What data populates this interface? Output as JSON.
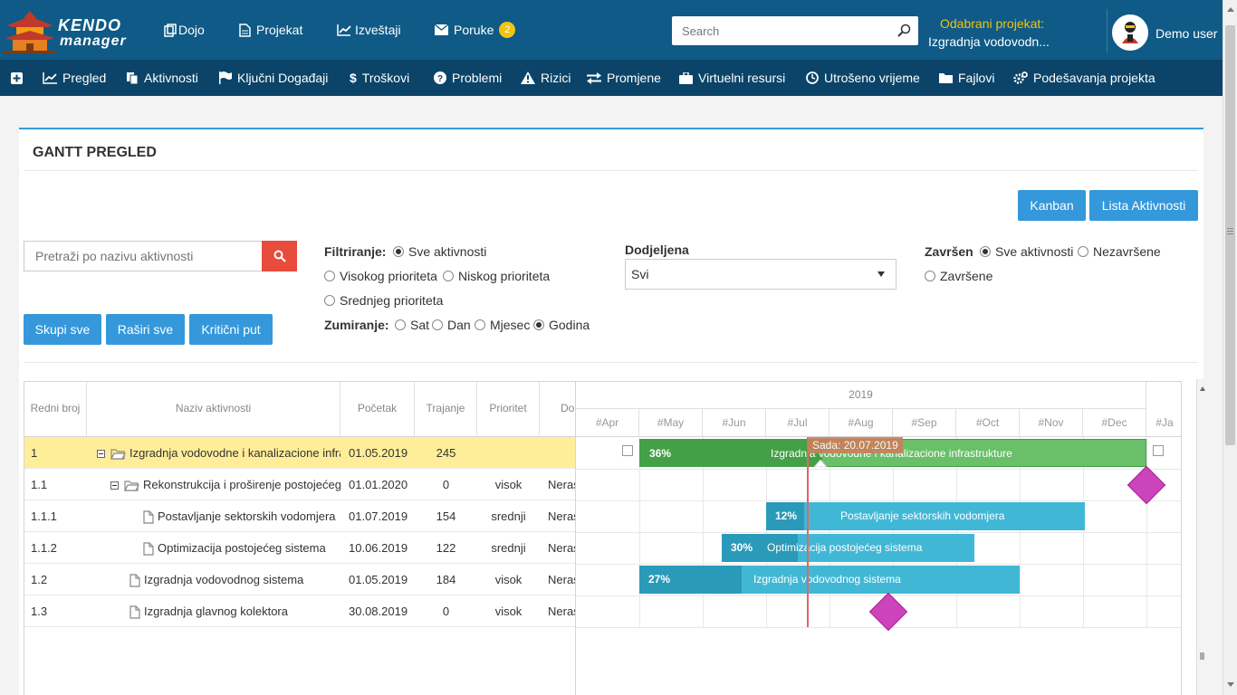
{
  "header": {
    "logo_line1": "KENDO",
    "logo_line2": "manager",
    "nav": [
      {
        "label": "Dojo",
        "icon": "copy-icon"
      },
      {
        "label": "Projekat",
        "icon": "document-icon"
      },
      {
        "label": "Izveštaji",
        "icon": "line-chart-icon"
      },
      {
        "label": "Poruke",
        "icon": "envelope-icon",
        "badge": "2"
      }
    ],
    "search_placeholder": "Search",
    "project_label": "Odabrani projekat:",
    "project_name": "Izgradnja vodovodn...",
    "user_name": "Demo user"
  },
  "subnav": [
    {
      "label": "",
      "icon": "plus-icon"
    },
    {
      "label": "Pregled",
      "icon": "area-chart-icon"
    },
    {
      "label": "Aktivnosti",
      "icon": "files-icon"
    },
    {
      "label": "Ključni Događaji",
      "icon": "flag-icon"
    },
    {
      "label": "Troškovi",
      "icon": "dollar-icon"
    },
    {
      "label": "Problemi",
      "icon": "question-circle-icon"
    },
    {
      "label": "Rizici",
      "icon": "warning-icon"
    },
    {
      "label": "Promjene",
      "icon": "exchange-icon"
    },
    {
      "label": "Virtuelni resursi",
      "icon": "briefcase-icon"
    },
    {
      "label": "Utrošeno vrijeme",
      "icon": "clock-icon"
    },
    {
      "label": "Fajlovi",
      "icon": "folder-icon"
    },
    {
      "label": "Podešavanja projekta",
      "icon": "cogs-icon"
    }
  ],
  "panel": {
    "title": "GANTT PREGLED",
    "kanban_label": "Kanban",
    "lista_label": "Lista Aktivnosti",
    "search_placeholder": "Pretraži po nazivu aktivnosti",
    "btn_collapse": "Skupi sve",
    "btn_expand": "Raširi sve",
    "btn_critical": "Kritični put",
    "filter_label": "Filtriranje:",
    "filter_options": [
      "Sve aktivnosti",
      "Visokog prioriteta",
      "Niskog prioriteta",
      "Srednjeg prioriteta"
    ],
    "zoom_label": "Zumiranje:",
    "zoom_options": [
      "Sat",
      "Dan",
      "Mjesec",
      "Godina"
    ],
    "assigned_label": "Dodjeljena",
    "assigned_value": "Svi",
    "done_label": "Završen",
    "done_options": [
      "Sve aktivnosti",
      "Nezavršene",
      "Završene"
    ]
  },
  "grid": {
    "columns": [
      "Redni broj",
      "Naziv aktivnosti",
      "Početak",
      "Trajanje",
      "Prioritet",
      "Do"
    ],
    "rows": [
      {
        "num": "1",
        "name": "Izgradnja vodovodne i kanalizacione infrastrukture",
        "start": "01.05.2019",
        "duration": "245",
        "priority": "",
        "assigned": ""
      },
      {
        "num": "1.1",
        "name": "Rekonstrukcija i proširenje postojećeg",
        "start": "01.01.2020",
        "duration": "0",
        "priority": "visok",
        "assigned": "Neras"
      },
      {
        "num": "1.1.1",
        "name": "Postavljanje sektorskih vodomjera",
        "start": "01.07.2019",
        "duration": "154",
        "priority": "srednji",
        "assigned": "Neras"
      },
      {
        "num": "1.1.2",
        "name": "Optimizacija postojećeg sistema",
        "start": "10.06.2019",
        "duration": "122",
        "priority": "srednji",
        "assigned": "Neras"
      },
      {
        "num": "1.2",
        "name": "Izgradnja vodovodnog sistema",
        "start": "01.05.2019",
        "duration": "184",
        "priority": "visok",
        "assigned": "Neras"
      },
      {
        "num": "1.3",
        "name": "Izgradnja glavnog kolektora",
        "start": "30.08.2019",
        "duration": "0",
        "priority": "visok",
        "assigned": "Neras"
      }
    ]
  },
  "timeline": {
    "year": "2019",
    "months": [
      "#Apr",
      "#May",
      "#Jun",
      "#Jul",
      "#Aug",
      "#Sep",
      "#Oct",
      "#Nov",
      "#Dec",
      "#Ja"
    ],
    "today_label": "Sada: 20.07.2019",
    "bars": [
      {
        "pct": "36%",
        "title": "Izgradnja vodovodne i kanalizacione infrastrukture",
        "progress": 0.36
      },
      {
        "pct": "12%",
        "title": "Postavljanje sektorskih vodomjera",
        "progress": 0.12
      },
      {
        "pct": "30%",
        "title": "Optimizacija postojećeg sistema",
        "progress": 0.3
      },
      {
        "pct": "27%",
        "title": "Izgradnja vodovodnog sistema",
        "progress": 0.27
      }
    ]
  },
  "colors": {
    "topbar": "#0f5a86",
    "subnav": "#0b4468",
    "primary": "#3498db",
    "danger": "#e74c3c",
    "summary_bar": "#6abf69",
    "summary_progress": "#43a047",
    "task_bar": "#41b7d6",
    "task_progress": "#2a9ab9",
    "milestone": "#cc44bb"
  }
}
